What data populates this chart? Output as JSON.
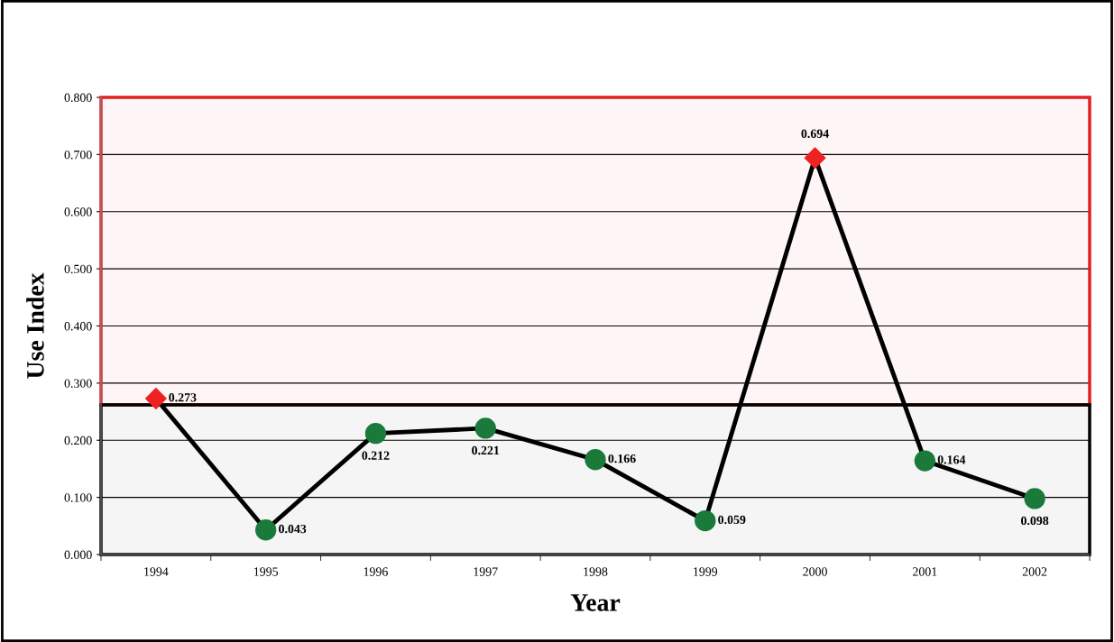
{
  "chart_data": {
    "type": "line",
    "xlabel": "Year",
    "ylabel": "Use Index",
    "categories": [
      "1994",
      "1995",
      "1996",
      "1997",
      "1998",
      "1999",
      "2000",
      "2001",
      "2002"
    ],
    "series": [
      {
        "color": "#000000",
        "values": [
          0.273,
          0.043,
          0.212,
          0.221,
          0.166,
          0.059,
          0.694,
          0.164,
          0.098
        ],
        "value_labels": [
          "0.273",
          "0.043",
          "0.212",
          "0.221",
          "0.166",
          "0.059",
          "0.694",
          "0.164",
          "0.098"
        ]
      },
      {
        "type": "scatter",
        "marker": "diamond",
        "color": "#ee2222",
        "values": [
          0.273,
          null,
          null,
          null,
          null,
          null,
          0.694,
          null,
          null
        ]
      },
      {
        "type": "scatter",
        "marker": "circle",
        "color": "#1a7a3a",
        "values": [
          null,
          0.043,
          0.212,
          0.221,
          0.166,
          0.059,
          null,
          0.164,
          0.098
        ]
      }
    ],
    "ylim": [
      0,
      0.8
    ],
    "yticks": [
      {
        "value": 0,
        "label": "0.000"
      },
      {
        "value": 0.1,
        "label": "0.100"
      },
      {
        "value": 0.2,
        "label": "0.200"
      },
      {
        "value": 0.3,
        "label": "0.300"
      },
      {
        "value": 0.4,
        "label": "0.400"
      },
      {
        "value": 0.5,
        "label": "0.500"
      },
      {
        "value": 0.6,
        "label": "0.600"
      },
      {
        "value": 0.7,
        "label": "0.700"
      },
      {
        "value": 0.8,
        "label": "0.800"
      }
    ],
    "bands": [
      {
        "axis": "y",
        "from": 0.262,
        "to": 0.8,
        "color": "#e02020"
      },
      {
        "axis": "y",
        "from": 0,
        "to": 0.262,
        "color": "#000000"
      }
    ],
    "grid": "y",
    "line_style": "solid",
    "legend": false
  }
}
